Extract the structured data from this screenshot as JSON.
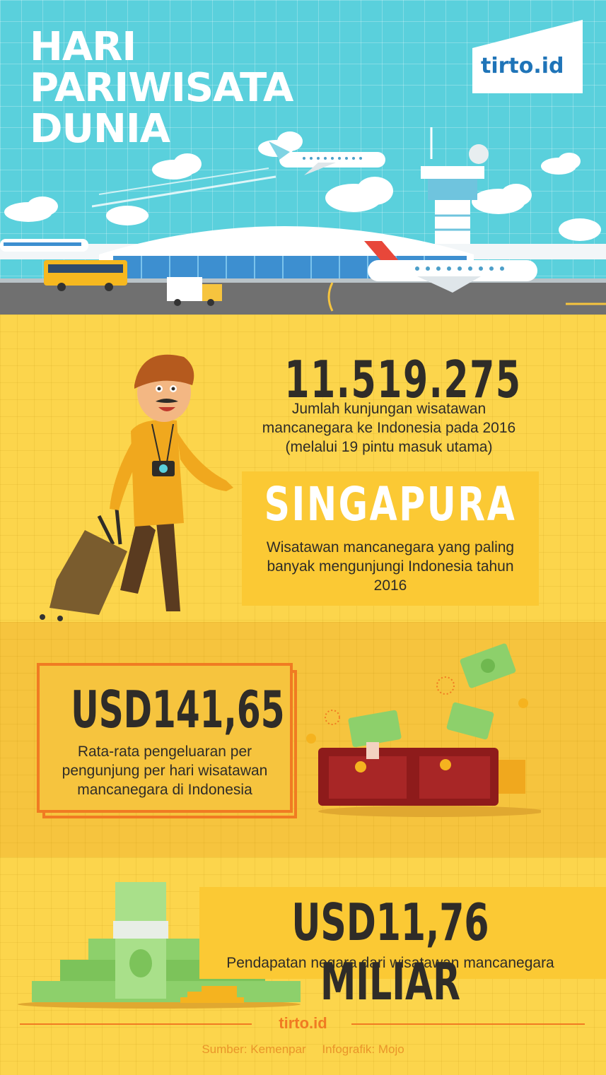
{
  "header": {
    "title": "HARI\nPARIWISATA\nDUNIA",
    "brand": "tirto.id"
  },
  "colors": {
    "sky": "#5ad0dc",
    "yellow": "#fcd54c",
    "yellow_dark": "#f6c43e",
    "orange": "#f07b22",
    "text_dark": "#2f2c28",
    "brand_blue": "#1f74b8"
  },
  "stats": {
    "visitors": {
      "value": "11.519.275",
      "description": "Jumlah kunjungan wisatawan mancanegara ke Indonesia pada 2016 (melalui 19 pintu masuk utama)"
    },
    "top_country": {
      "value": "SINGAPURA",
      "description": "Wisatawan mancanegara yang paling banyak mengunjungi Indonesia tahun 2016"
    },
    "spending": {
      "value": "USD141,65",
      "description": "Rata-rata pengeluaran per pengunjung per hari wisatawan mancanegara di Indonesia"
    },
    "revenue": {
      "value": "USD11,76 MILIAR",
      "description": "Pendapatan negara dari wisatawan mancanegara"
    }
  },
  "footer": {
    "brand": "tirto.id",
    "source": "Sumber: Kemenpar",
    "credit": "Infografik: Mojo"
  },
  "icons": [
    "airport-illustration",
    "airplane-icon",
    "control-tower-icon",
    "bus-icon",
    "truck-icon",
    "train-icon",
    "tourist-illustration",
    "suitcase-icon",
    "camera-icon",
    "wallet-icon",
    "money-icon",
    "money-stack-icon",
    "coin-icon"
  ]
}
